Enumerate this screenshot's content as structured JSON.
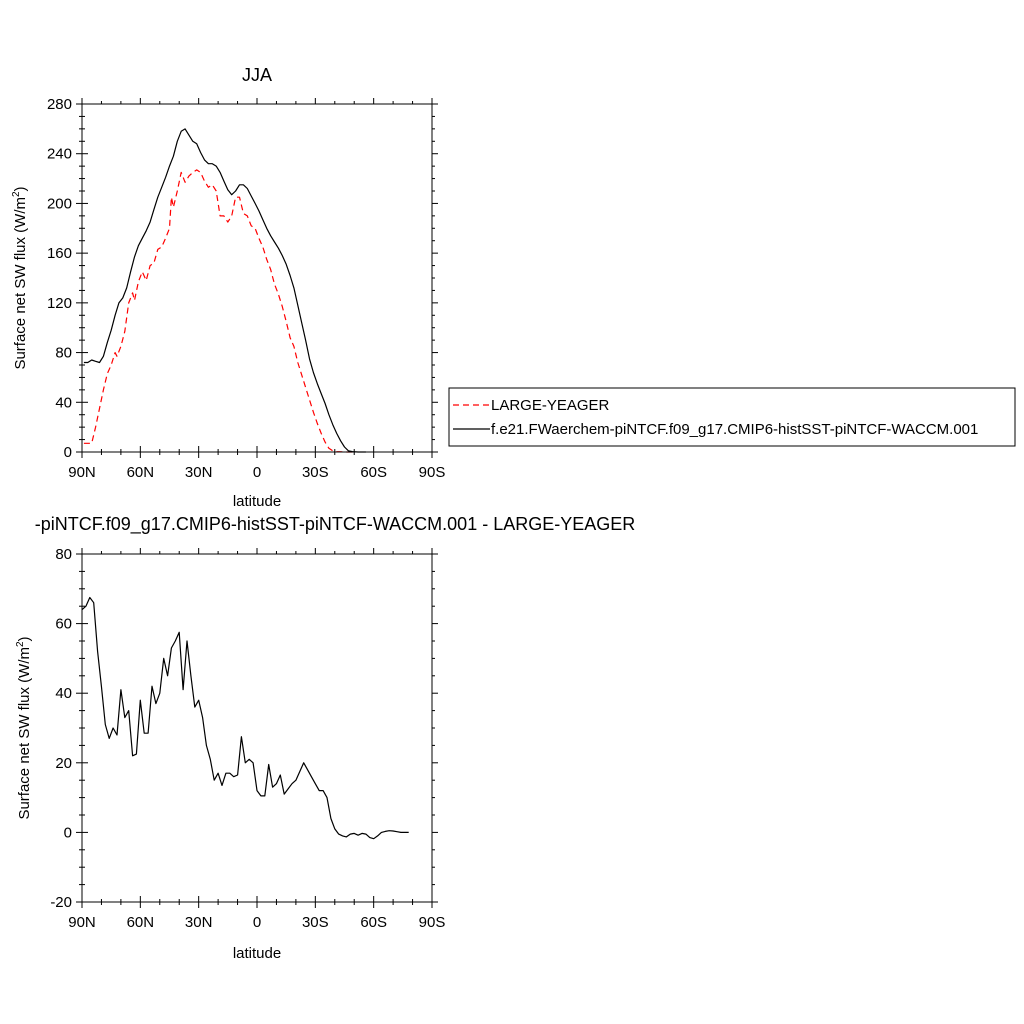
{
  "chart_data": [
    {
      "type": "line",
      "title": "JJA",
      "xlabel": "latitude",
      "ylabel": "Surface net SW flux (W/m",
      "ylabel_sup": "2",
      "ylabel_close": ")",
      "xlim": [
        90,
        -90
      ],
      "ylim": [
        0,
        280
      ],
      "xticks": [
        90,
        60,
        30,
        0,
        -30,
        -60,
        -90
      ],
      "xtick_labels": [
        "90N",
        "60N",
        "30N",
        "0",
        "30S",
        "60S",
        "90S"
      ],
      "yticks": [
        0,
        40,
        80,
        120,
        160,
        200,
        240,
        280
      ],
      "ytick_labels": [
        "0",
        "40",
        "80",
        "120",
        "160",
        "200",
        "240",
        "280"
      ],
      "legend_position": "right",
      "series": [
        {
          "name": "LARGE-YEAGER",
          "color": "#ff0000",
          "dash": "dashed",
          "points": [
            [
              89,
              7
            ],
            [
              85,
              7
            ],
            [
              83,
              20
            ],
            [
              81,
              35
            ],
            [
              79,
              50
            ],
            [
              77,
              63
            ],
            [
              75,
              70
            ],
            [
              73,
              80
            ],
            [
              72,
              77
            ],
            [
              70,
              85
            ],
            [
              68,
              97
            ],
            [
              66,
              120
            ],
            [
              64,
              128
            ],
            [
              63,
              122
            ],
            [
              61,
              137
            ],
            [
              59,
              145
            ],
            [
              57,
              138
            ],
            [
              55,
              150
            ],
            [
              53,
              152
            ],
            [
              51,
              163
            ],
            [
              49,
              165
            ],
            [
              47,
              172
            ],
            [
              45,
              180
            ],
            [
              44,
              205
            ],
            [
              43,
              197
            ],
            [
              41,
              210
            ],
            [
              39,
              225
            ],
            [
              37,
              217
            ],
            [
              35,
              222
            ],
            [
              33,
              225
            ],
            [
              31,
              227
            ],
            [
              29,
              225
            ],
            [
              27,
              218
            ],
            [
              25,
              213
            ],
            [
              23,
              215
            ],
            [
              21,
              210
            ],
            [
              19,
              190
            ],
            [
              17,
              190
            ],
            [
              15,
              185
            ],
            [
              13,
              190
            ],
            [
              11,
              205
            ],
            [
              9,
              205
            ],
            [
              7,
              192
            ],
            [
              5,
              190
            ],
            [
              3,
              182
            ],
            [
              1,
              180
            ],
            [
              -1,
              172
            ],
            [
              -3,
              165
            ],
            [
              -5,
              155
            ],
            [
              -7,
              147
            ],
            [
              -9,
              135
            ],
            [
              -11,
              127
            ],
            [
              -13,
              117
            ],
            [
              -15,
              105
            ],
            [
              -17,
              92
            ],
            [
              -19,
              85
            ],
            [
              -21,
              72
            ],
            [
              -23,
              62
            ],
            [
              -25,
              52
            ],
            [
              -27,
              42
            ],
            [
              -29,
              32
            ],
            [
              -31,
              23
            ],
            [
              -33,
              15
            ],
            [
              -35,
              8
            ],
            [
              -37,
              3
            ],
            [
              -39,
              1
            ],
            [
              -41,
              0.3
            ],
            [
              -45,
              0
            ],
            [
              -50,
              0
            ]
          ]
        },
        {
          "name": "f.e21.FWaerchem-piNTCF.f09_g17.CMIP6-histSST-piNTCF-WACCM.001",
          "color": "#000000",
          "dash": "solid",
          "points": [
            [
              89,
              72
            ],
            [
              87,
              72
            ],
            [
              85,
              74
            ],
            [
              83,
              73
            ],
            [
              81,
              72
            ],
            [
              79,
              77
            ],
            [
              77,
              88
            ],
            [
              75,
              98
            ],
            [
              73,
              110
            ],
            [
              71,
              120
            ],
            [
              69,
              124
            ],
            [
              67,
              132
            ],
            [
              65,
              145
            ],
            [
              63,
              157
            ],
            [
              61,
              166
            ],
            [
              59,
              172
            ],
            [
              57,
              178
            ],
            [
              55,
              185
            ],
            [
              53,
              195
            ],
            [
              51,
              205
            ],
            [
              49,
              213
            ],
            [
              47,
              221
            ],
            [
              45,
              230
            ],
            [
              43,
              238
            ],
            [
              41,
              250
            ],
            [
              39,
              258
            ],
            [
              37,
              260
            ],
            [
              35,
              255
            ],
            [
              33,
              250
            ],
            [
              31,
              248
            ],
            [
              29,
              241
            ],
            [
              27,
              235
            ],
            [
              25,
              232
            ],
            [
              23,
              232
            ],
            [
              21,
              230
            ],
            [
              19,
              225
            ],
            [
              17,
              218
            ],
            [
              15,
              211
            ],
            [
              13,
              207
            ],
            [
              11,
              210
            ],
            [
              9,
              215
            ],
            [
              7,
              215
            ],
            [
              5,
              212
            ],
            [
              3,
              206
            ],
            [
              1,
              200
            ],
            [
              -1,
              194
            ],
            [
              -3,
              187
            ],
            [
              -5,
              180
            ],
            [
              -7,
              174
            ],
            [
              -9,
              169
            ],
            [
              -11,
              164
            ],
            [
              -13,
              158
            ],
            [
              -15,
              151
            ],
            [
              -17,
              142
            ],
            [
              -19,
              132
            ],
            [
              -21,
              118
            ],
            [
              -23,
              104
            ],
            [
              -25,
              90
            ],
            [
              -27,
              75
            ],
            [
              -29,
              64
            ],
            [
              -31,
              55
            ],
            [
              -33,
              47
            ],
            [
              -35,
              39
            ],
            [
              -37,
              30
            ],
            [
              -39,
              22
            ],
            [
              -41,
              15
            ],
            [
              -43,
              9
            ],
            [
              -45,
              4
            ],
            [
              -47,
              1
            ],
            [
              -49,
              0.3
            ],
            [
              -52,
              0
            ],
            [
              -56,
              0
            ]
          ]
        }
      ]
    },
    {
      "type": "line",
      "title": "-piNTCF.f09_g17.CMIP6-histSST-piNTCF-WACCM.001 - LARGE-YEAGER",
      "xlabel": "latitude",
      "ylabel": "Surface net SW flux (W/m",
      "ylabel_sup": "2",
      "ylabel_close": ")",
      "xlim": [
        90,
        -90
      ],
      "ylim": [
        -20,
        80
      ],
      "xticks": [
        90,
        60,
        30,
        0,
        -30,
        -60,
        -90
      ],
      "xtick_labels": [
        "90N",
        "60N",
        "30N",
        "0",
        "30S",
        "60S",
        "90S"
      ],
      "yticks": [
        -20,
        0,
        20,
        40,
        60,
        80
      ],
      "ytick_labels": [
        "-20",
        "0",
        "20",
        "40",
        "60",
        "80"
      ],
      "series": [
        {
          "color": "#000000",
          "dash": "solid",
          "points": [
            [
              90,
              64
            ],
            [
              88,
              65
            ],
            [
              86,
              67.5
            ],
            [
              84,
              66
            ],
            [
              82,
              52
            ],
            [
              80,
              42
            ],
            [
              78,
              31
            ],
            [
              76,
              27
            ],
            [
              74,
              30
            ],
            [
              72,
              28
            ],
            [
              70,
              41
            ],
            [
              68,
              33
            ],
            [
              66,
              35
            ],
            [
              64,
              22
            ],
            [
              62,
              22.5
            ],
            [
              60,
              38
            ],
            [
              58,
              28.5
            ],
            [
              56,
              28.5
            ],
            [
              54,
              42
            ],
            [
              52,
              37
            ],
            [
              50,
              40
            ],
            [
              48,
              50
            ],
            [
              46,
              45
            ],
            [
              44,
              53
            ],
            [
              42,
              55
            ],
            [
              40,
              57.5
            ],
            [
              38,
              41
            ],
            [
              36,
              55
            ],
            [
              34,
              45
            ],
            [
              32,
              36
            ],
            [
              30,
              38
            ],
            [
              28,
              33
            ],
            [
              26,
              25
            ],
            [
              24,
              21
            ],
            [
              22,
              15
            ],
            [
              20,
              17
            ],
            [
              18,
              13.5
            ],
            [
              16,
              17
            ],
            [
              14,
              17
            ],
            [
              12,
              16
            ],
            [
              10,
              16.5
            ],
            [
              8,
              27.5
            ],
            [
              6,
              20
            ],
            [
              4,
              21
            ],
            [
              2,
              20
            ],
            [
              0,
              12
            ],
            [
              -2,
              10.5
            ],
            [
              -4,
              10.5
            ],
            [
              -6,
              19.5
            ],
            [
              -8,
              13
            ],
            [
              -10,
              14
            ],
            [
              -12,
              16.5
            ],
            [
              -14,
              11
            ],
            [
              -16,
              12.5
            ],
            [
              -18,
              14
            ],
            [
              -20,
              15
            ],
            [
              -22,
              17.5
            ],
            [
              -24,
              20
            ],
            [
              -26,
              18
            ],
            [
              -28,
              16
            ],
            [
              -30,
              14
            ],
            [
              -32,
              12
            ],
            [
              -34,
              12
            ],
            [
              -36,
              10
            ],
            [
              -38,
              4
            ],
            [
              -40,
              1
            ],
            [
              -42,
              -0.5
            ],
            [
              -44,
              -1
            ],
            [
              -46,
              -1.3
            ],
            [
              -48,
              -0.5
            ],
            [
              -50,
              -0.3
            ],
            [
              -52,
              -0.8
            ],
            [
              -54,
              -0.3
            ],
            [
              -56,
              -0.5
            ],
            [
              -58,
              -1.5
            ],
            [
              -60,
              -1.8
            ],
            [
              -62,
              -1
            ],
            [
              -64,
              0
            ],
            [
              -66,
              0.3
            ],
            [
              -68,
              0.5
            ],
            [
              -70,
              0.4
            ],
            [
              -72,
              0.2
            ],
            [
              -74,
              0
            ],
            [
              -76,
              0
            ],
            [
              -78,
              0
            ]
          ]
        }
      ]
    }
  ]
}
